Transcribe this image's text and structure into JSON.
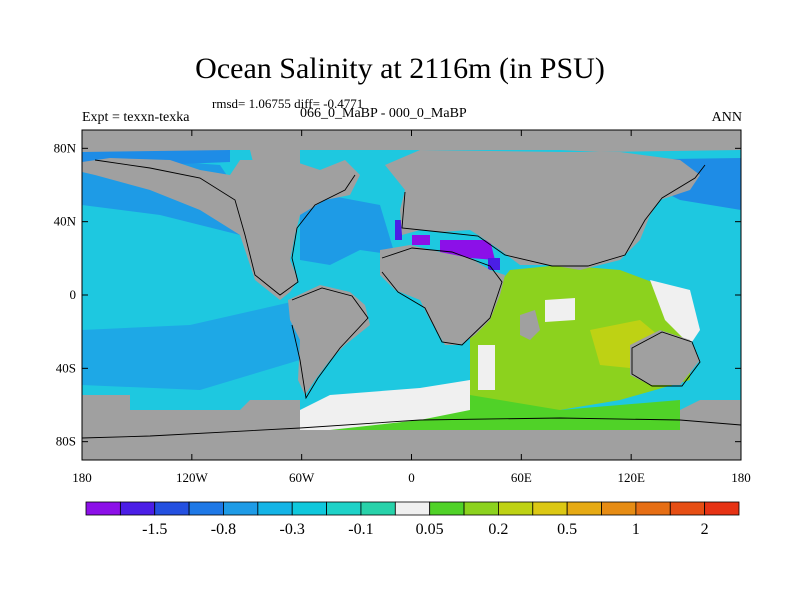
{
  "title": "Ocean Salinity at 2116m (in PSU)",
  "stats_text": "rmsd= 1.06755  diff= -0.4771",
  "expt_label": "Expt = texxn-texka",
  "experiments_label": "066_0_MaBP - 000_0_MaBP",
  "season_label": "ANN",
  "map": {
    "projection": "cylindrical equidistant",
    "lon_range": [
      -180,
      180
    ],
    "lat_range": [
      -90,
      90
    ],
    "x_ticks": [
      {
        "lon": -180,
        "label": "180"
      },
      {
        "lon": -120,
        "label": "120W"
      },
      {
        "lon": -60,
        "label": "60W"
      },
      {
        "lon": 0,
        "label": "0"
      },
      {
        "lon": 60,
        "label": "60E"
      },
      {
        "lon": 120,
        "label": "120E"
      },
      {
        "lon": 180,
        "label": "180"
      }
    ],
    "y_ticks": [
      {
        "lat": 80,
        "label": "80N"
      },
      {
        "lat": 40,
        "label": "40N"
      },
      {
        "lat": 0,
        "label": "0"
      },
      {
        "lat": -40,
        "label": "40S"
      },
      {
        "lat": -80,
        "label": "80S"
      }
    ],
    "land_color": "#a0a0a0",
    "missing_color": "#ececec"
  },
  "colorbar": {
    "colors": [
      "#8c10e8",
      "#4b1ee6",
      "#2450e0",
      "#1e78e6",
      "#1e9be6",
      "#14b4e6",
      "#10c8dc",
      "#1ed2c8",
      "#28d2aa",
      "#f0f0f0",
      "#50d228",
      "#8cd21e",
      "#bed214",
      "#dcc814",
      "#e6aa14",
      "#e68c14",
      "#e66e14",
      "#e64e14",
      "#e63214"
    ],
    "labels": [
      {
        "after_box": 2,
        "text": "-1.5"
      },
      {
        "after_box": 4,
        "text": "-0.8"
      },
      {
        "after_box": 6,
        "text": "-0.3"
      },
      {
        "after_box": 8,
        "text": "-0.1"
      },
      {
        "after_box": 10,
        "text": "0.05"
      },
      {
        "after_box": 12,
        "text": "0.2"
      },
      {
        "after_box": 14,
        "text": "0.5"
      },
      {
        "after_box": 16,
        "text": "1"
      },
      {
        "after_box": 18,
        "text": "2"
      }
    ]
  }
}
